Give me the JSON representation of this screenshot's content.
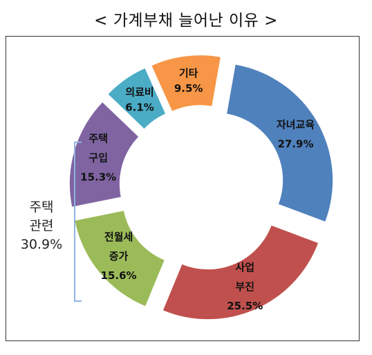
{
  "chart_data": {
    "type": "pie",
    "style": "exploded-donut",
    "title": "< 가계부채 늘어난 이유 >",
    "slices": [
      {
        "key": "education",
        "label_lines": [
          "자녀교육"
        ],
        "pct_label": "27.9%",
        "value": 27.9,
        "color": "#4f81bd"
      },
      {
        "key": "business",
        "label_lines": [
          "사업",
          "부진"
        ],
        "pct_label": "25.5%",
        "value": 25.5,
        "color": "#c0504d"
      },
      {
        "key": "rent",
        "label_lines": [
          "전월세",
          "증가"
        ],
        "pct_label": "15.6%",
        "value": 15.6,
        "color": "#9bbb59"
      },
      {
        "key": "housing",
        "label_lines": [
          "주택",
          "구입"
        ],
        "pct_label": "15.3%",
        "value": 15.3,
        "color": "#8064a2"
      },
      {
        "key": "medical",
        "label_lines": [
          "의료비"
        ],
        "pct_label": "6.1%",
        "value": 6.1,
        "color": "#4bacc6"
      },
      {
        "key": "other",
        "label_lines": [
          "기타"
        ],
        "pct_label": "9.5%",
        "value": 9.5,
        "color": "#f79646"
      }
    ],
    "group_annotation": {
      "lines": [
        "주택",
        "관련",
        "30.9%"
      ],
      "members": [
        "rent",
        "housing"
      ],
      "bracket_color": "#8eb4e3"
    }
  }
}
